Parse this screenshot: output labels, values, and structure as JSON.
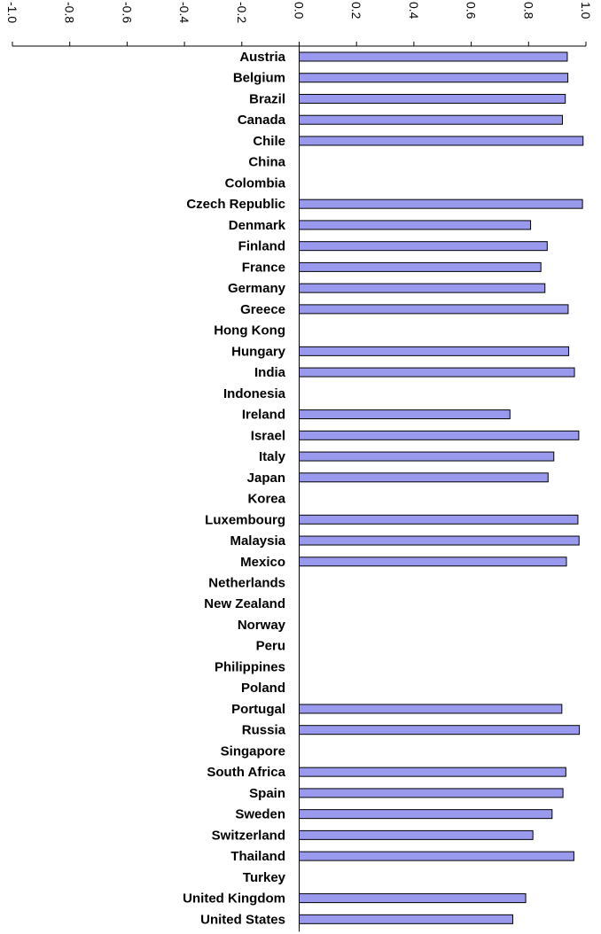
{
  "chart_data": {
    "type": "bar",
    "orientation": "horizontal",
    "categories": [
      "Austria",
      "Belgium",
      "Brazil",
      "Canada",
      "Chile",
      "China",
      "Colombia",
      "Czech Republic",
      "Denmark",
      "Finland",
      "France",
      "Germany",
      "Greece",
      "Hong Kong",
      "Hungary",
      "India",
      "Indonesia",
      "Ireland",
      "Israel",
      "Italy",
      "Japan",
      "Korea",
      "Luxembourg",
      "Malaysia",
      "Mexico",
      "Netherlands",
      "New Zealand",
      "Norway",
      "Peru",
      "Philippines",
      "Poland",
      "Portugal",
      "Russia",
      "Singapore",
      "South Africa",
      "Spain",
      "Sweden",
      "Switzerland",
      "Thailand",
      "Turkey",
      "United Kingdom",
      "United States"
    ],
    "values": [
      0.935,
      0.937,
      0.928,
      0.918,
      0.99,
      null,
      null,
      0.988,
      0.807,
      0.865,
      0.843,
      0.857,
      0.938,
      null,
      0.94,
      0.96,
      null,
      0.735,
      0.975,
      0.888,
      0.868,
      null,
      0.972,
      0.976,
      0.932,
      null,
      null,
      null,
      null,
      null,
      null,
      0.916,
      0.977,
      null,
      0.93,
      0.92,
      0.882,
      0.815,
      0.958,
      null,
      0.79,
      0.745
    ],
    "xlim": [
      -1.0,
      1.0
    ],
    "ticks": [
      "-1.0",
      "-0.8",
      "-0.6",
      "-0.4",
      "-0.2",
      "0.0",
      "0.2",
      "0.4",
      "0.6",
      "0.8",
      "1.0"
    ],
    "tick_values": [
      -1.0,
      -0.8,
      -0.6,
      -0.4,
      -0.2,
      0.0,
      0.2,
      0.4,
      0.6,
      0.8,
      1.0
    ],
    "tick_label_rotation": "90deg",
    "axis_position": "top",
    "bar_color": "#9999ee",
    "grid": false,
    "legend": "none"
  }
}
